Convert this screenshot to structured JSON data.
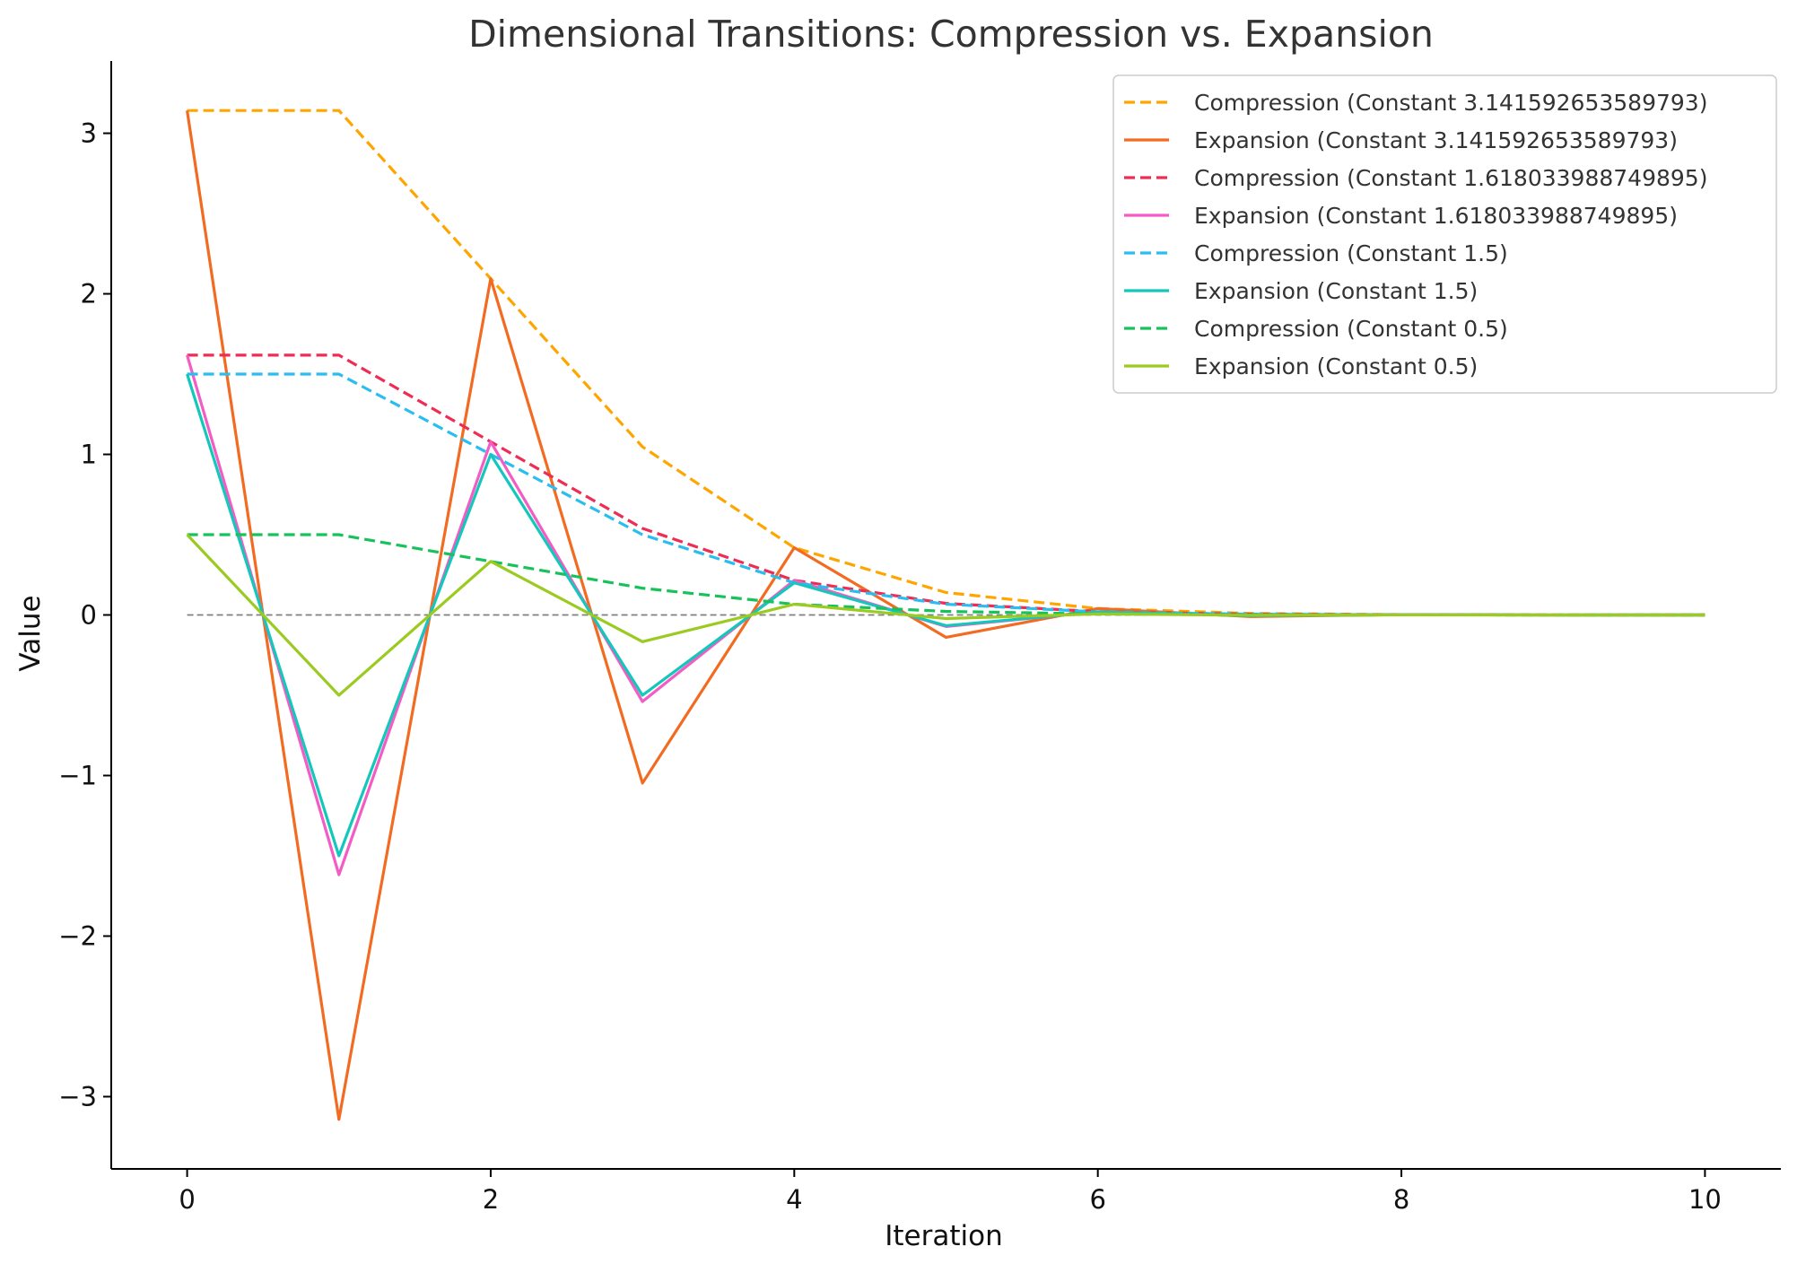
{
  "chart_data": {
    "type": "line",
    "title": "Dimensional Transitions: Compression vs. Expansion",
    "xlabel": "Iteration",
    "ylabel": "Value",
    "xlim": [
      -0.5,
      10.5
    ],
    "ylim": [
      -3.45,
      3.45
    ],
    "xticks": [
      0,
      2,
      4,
      6,
      8,
      10
    ],
    "xtick_labels": [
      "0",
      "2",
      "4",
      "6",
      "8",
      "10"
    ],
    "yticks": [
      -3,
      -2,
      -1,
      0,
      1,
      2,
      3
    ],
    "ytick_labels": [
      "−3",
      "−2",
      "−1",
      "0",
      "1",
      "2",
      "3"
    ],
    "grid": false,
    "legend_position": "top-right",
    "reference_line": {
      "y": 0,
      "style": "dashed",
      "color": "#808080"
    },
    "x": [
      0,
      1,
      2,
      3,
      4,
      5,
      6,
      7,
      8,
      9,
      10
    ],
    "series": [
      {
        "name": "Compression (Constant 3.141592653589793)",
        "style": "dashed",
        "color": "#FFA500",
        "values": [
          3.1416,
          3.1416,
          2.0944,
          1.0472,
          0.4189,
          0.1396,
          0.0399,
          0.01,
          0.0022,
          0.0004,
          0.0001
        ]
      },
      {
        "name": "Expansion (Constant 3.141592653589793)",
        "style": "solid",
        "color": "#F26B21",
        "values": [
          3.1416,
          -3.1416,
          2.0944,
          -1.0472,
          0.4189,
          -0.1396,
          0.0399,
          -0.01,
          0.0022,
          -0.0004,
          0.0001
        ]
      },
      {
        "name": "Compression (Constant 1.618033988749895)",
        "style": "dashed",
        "color": "#EE2D55",
        "values": [
          1.618,
          1.618,
          1.0787,
          0.5393,
          0.2157,
          0.0719,
          0.0205,
          0.0051,
          0.0011,
          0.0002,
          0.0
        ]
      },
      {
        "name": "Expansion (Constant 1.618033988749895)",
        "style": "solid",
        "color": "#F25CC4",
        "values": [
          1.618,
          -1.618,
          1.0787,
          -0.5393,
          0.2157,
          -0.0719,
          0.0205,
          -0.0051,
          0.0011,
          -0.0002,
          0.0
        ]
      },
      {
        "name": "Compression (Constant 1.5)",
        "style": "dashed",
        "color": "#2BBDF0",
        "values": [
          1.5,
          1.5,
          1.0,
          0.5,
          0.2,
          0.0667,
          0.019,
          0.0048,
          0.0011,
          0.0002,
          0.0
        ]
      },
      {
        "name": "Expansion (Constant 1.5)",
        "style": "solid",
        "color": "#14C7BB",
        "values": [
          1.5,
          -1.5,
          1.0,
          -0.5,
          0.2,
          -0.0667,
          0.019,
          -0.0048,
          0.0011,
          -0.0002,
          0.0
        ]
      },
      {
        "name": "Compression (Constant 0.5)",
        "style": "dashed",
        "color": "#17C25B",
        "values": [
          0.5,
          0.5,
          0.3333,
          0.1667,
          0.0667,
          0.0222,
          0.0063,
          0.0016,
          0.0004,
          0.0001,
          0.0
        ]
      },
      {
        "name": "Expansion (Constant 0.5)",
        "style": "solid",
        "color": "#9BCA21",
        "values": [
          0.5,
          -0.5,
          0.3333,
          -0.1667,
          0.0667,
          -0.0222,
          0.0063,
          -0.0016,
          0.0004,
          -0.0001,
          0.0
        ]
      }
    ]
  }
}
